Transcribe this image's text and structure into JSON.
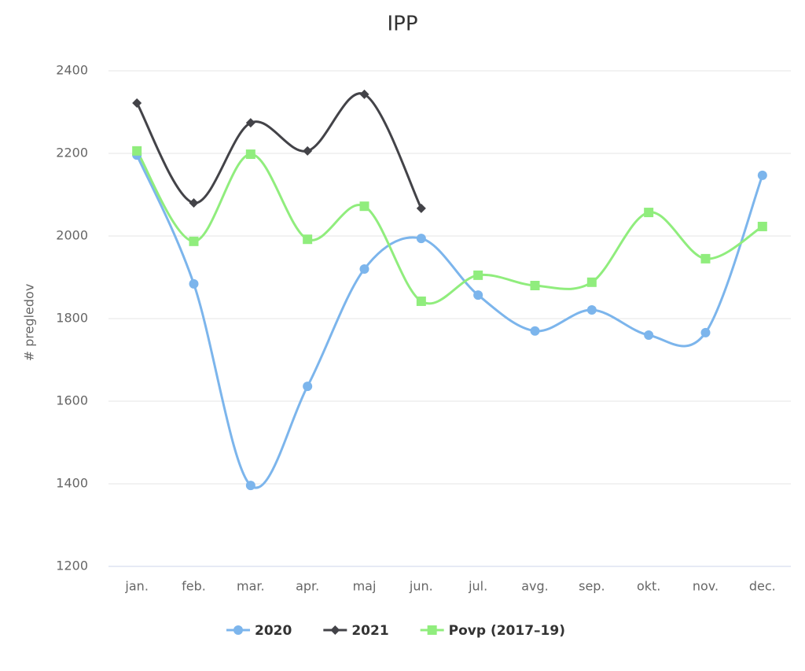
{
  "chart_data": {
    "type": "spline",
    "title": "IPP",
    "y_label": "# pregledov",
    "categories": [
      "jan.",
      "feb.",
      "mar.",
      "apr.",
      "maj",
      "jun.",
      "jul.",
      "avg.",
      "sep.",
      "okt.",
      "nov.",
      "dec."
    ],
    "series": [
      {
        "name": "2020",
        "color": "#7cb5ec",
        "marker": "circle",
        "values": [
          2196,
          1884,
          1396,
          1636,
          1920,
          1994,
          1857,
          1770,
          1821,
          1760,
          1766,
          2147
        ]
      },
      {
        "name": "2021",
        "color": "#434348",
        "marker": "diamond",
        "values": [
          2322,
          2080,
          2274,
          2206,
          2343,
          2067,
          null,
          null,
          null,
          null,
          null,
          null
        ]
      },
      {
        "name": "Povp (2017–19)",
        "color": "#90ed7d",
        "marker": "square",
        "values": [
          2206,
          1987,
          2198,
          1992,
          2072,
          1842,
          1905,
          1880,
          1888,
          2057,
          1945,
          2023
        ]
      }
    ],
    "ylim": [
      1200,
      2400
    ],
    "yticks": [
      1200,
      1400,
      1600,
      1800,
      2000,
      2200,
      2400
    ],
    "grid": true
  }
}
